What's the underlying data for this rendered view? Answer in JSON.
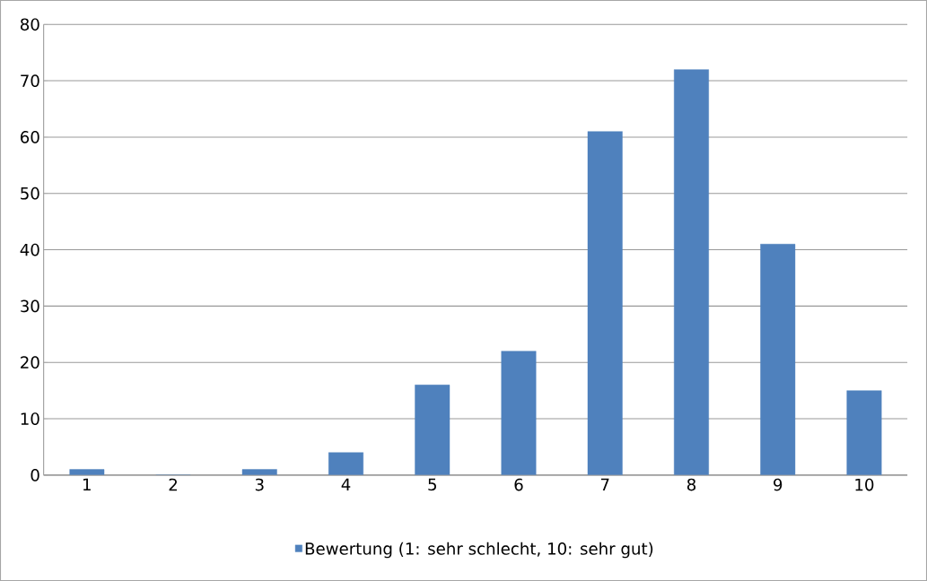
{
  "chart_data": {
    "type": "bar",
    "categories": [
      "1",
      "2",
      "3",
      "4",
      "5",
      "6",
      "7",
      "8",
      "9",
      "10"
    ],
    "series": [
      {
        "name": "Bewertung (1: sehr schlecht, 10: sehr gut)",
        "color": "#4f81bd",
        "values": [
          1,
          0,
          1,
          4,
          16,
          22,
          61,
          72,
          41,
          15
        ]
      }
    ],
    "ylim": [
      0,
      80
    ],
    "yticks": [
      0,
      10,
      20,
      30,
      40,
      50,
      60,
      70,
      80
    ],
    "grid": "y",
    "legend": "bottom"
  }
}
